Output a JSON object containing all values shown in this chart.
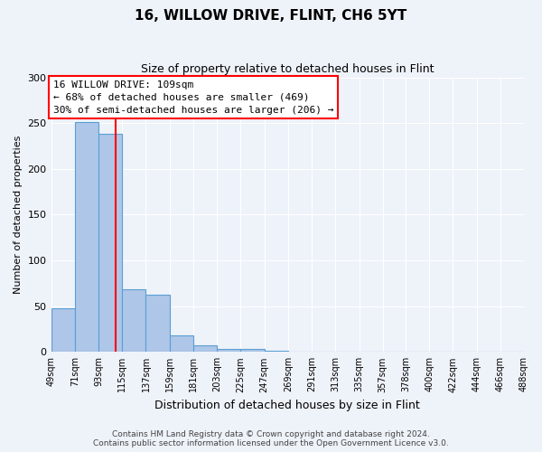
{
  "title": "16, WILLOW DRIVE, FLINT, CH6 5YT",
  "subtitle": "Size of property relative to detached houses in Flint",
  "xlabel": "Distribution of detached houses by size in Flint",
  "ylabel": "Number of detached properties",
  "bin_edges": [
    49,
    71,
    93,
    115,
    137,
    159,
    181,
    203,
    225,
    247,
    269,
    291,
    313,
    335,
    357,
    378,
    400,
    422,
    444,
    466,
    488
  ],
  "bin_labels": [
    "49sqm",
    "71sqm",
    "93sqm",
    "115sqm",
    "137sqm",
    "159sqm",
    "181sqm",
    "203sqm",
    "225sqm",
    "247sqm",
    "269sqm",
    "291sqm",
    "313sqm",
    "335sqm",
    "357sqm",
    "378sqm",
    "400sqm",
    "422sqm",
    "444sqm",
    "466sqm",
    "488sqm"
  ],
  "bar_heights": [
    48,
    251,
    238,
    68,
    63,
    18,
    7,
    3,
    3,
    1,
    0,
    0,
    0,
    0,
    0,
    0,
    0,
    0,
    0,
    0
  ],
  "bar_color": "#aec6e8",
  "bar_edgecolor": "#5a9fd4",
  "property_line_x": 109,
  "property_line_label": "16 WILLOW DRIVE: 109sqm",
  "annotation_line1": "← 68% of detached houses are smaller (469)",
  "annotation_line2": "30% of semi-detached houses are larger (206) →",
  "box_facecolor": "white",
  "box_edgecolor": "red",
  "vline_color": "red",
  "ylim": [
    0,
    300
  ],
  "yticks": [
    0,
    50,
    100,
    150,
    200,
    250,
    300
  ],
  "footer_line1": "Contains HM Land Registry data © Crown copyright and database right 2024.",
  "footer_line2": "Contains public sector information licensed under the Open Government Licence v3.0.",
  "bg_color": "#eef2f9",
  "title_fontsize": 11,
  "subtitle_fontsize": 9,
  "ylabel_fontsize": 8,
  "xlabel_fontsize": 9,
  "tick_fontsize": 7,
  "annot_fontsize": 8,
  "footer_fontsize": 6.5
}
